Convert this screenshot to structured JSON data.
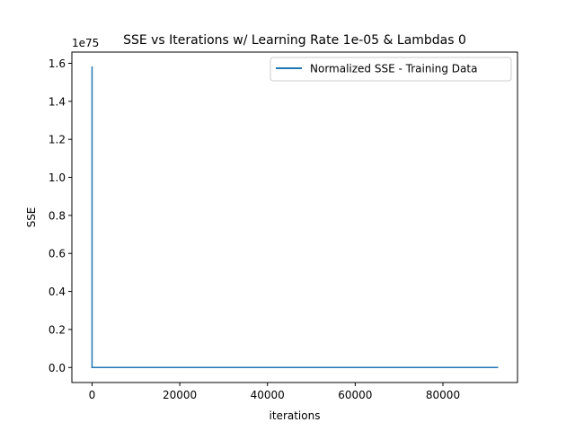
{
  "chart_data": {
    "type": "line",
    "title": "SSE vs Iterations w/ Learning Rate 1e-05 & Lambdas 0",
    "xlabel": "iterations",
    "ylabel": "SSE",
    "y_offset_text": "1e75",
    "xlim": [
      -4600,
      97000
    ],
    "ylim": [
      -0.079,
      1.659
    ],
    "x_ticks": [
      0,
      20000,
      40000,
      60000,
      80000
    ],
    "x_tick_labels": [
      "0",
      "20000",
      "40000",
      "60000",
      "80000"
    ],
    "y_ticks": [
      0.0,
      0.2,
      0.4,
      0.6,
      0.8,
      1.0,
      1.2,
      1.4,
      1.6
    ],
    "y_tick_labels": [
      "0.0",
      "0.2",
      "0.4",
      "0.6",
      "0.8",
      "1.0",
      "1.2",
      "1.4",
      "1.6"
    ],
    "grid": false,
    "legend_position": "top-right",
    "series": [
      {
        "name": "Normalized SSE - Training Data",
        "color": "#1f77b4",
        "in_legend": true,
        "x": [
          0,
          0,
          0,
          92400
        ],
        "y": [
          1.58,
          1.58,
          0.0,
          0.0
        ]
      },
      {
        "color": "#ff7f0e",
        "in_legend": false,
        "x": [
          0,
          92400
        ],
        "y": [
          0.0,
          0.0
        ]
      },
      {
        "color": "#2ca02c",
        "in_legend": false,
        "x": [
          0,
          92400
        ],
        "y": [
          0.0,
          0.0
        ]
      },
      {
        "color": "#8c564b",
        "in_legend": false,
        "x": [
          0,
          92400
        ],
        "y": [
          0.0,
          0.0
        ]
      }
    ]
  }
}
